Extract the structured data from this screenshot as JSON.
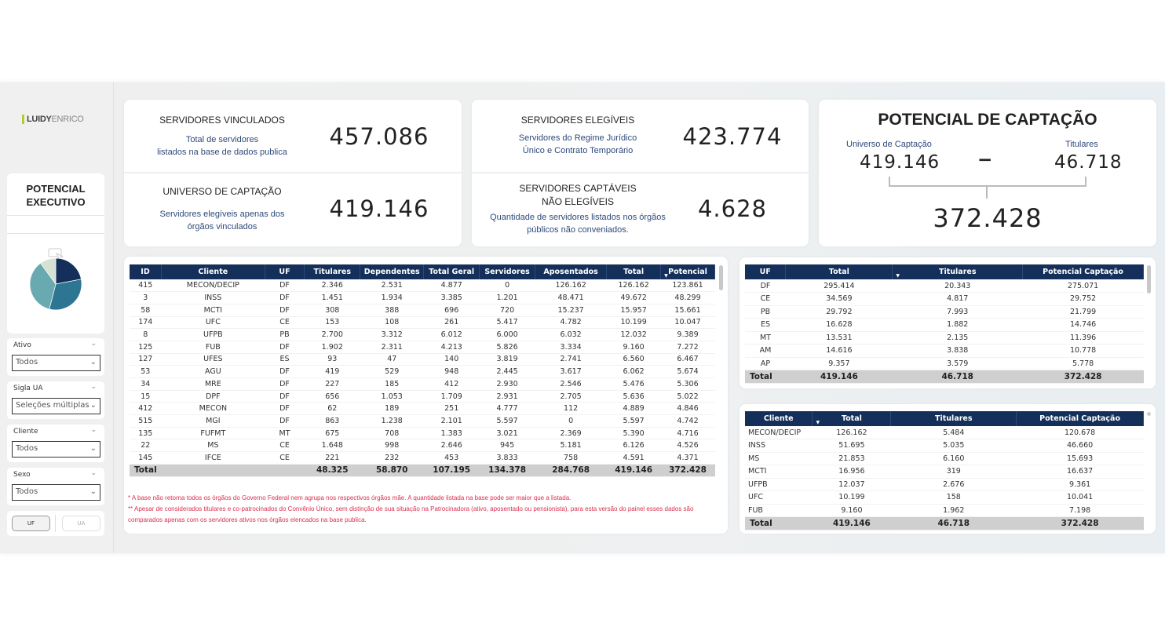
{
  "brand": {
    "logo_bold": "LUIDY",
    "logo_light": "ENRICO"
  },
  "sidebar": {
    "title": "POTENCIAL EXECUTIVO",
    "pie": {
      "slices": [
        22,
        32,
        36,
        10
      ],
      "colors": [
        "#14305a",
        "#2e7593",
        "#69aab0",
        "#d5e2d3"
      ]
    },
    "slicers": [
      {
        "label": "Ativo",
        "value": "Todos"
      },
      {
        "label": "Sigla UA",
        "value": "Seleções múltiplas"
      },
      {
        "label": "Cliente",
        "value": "Todos"
      },
      {
        "label": "Sexo",
        "value": "Todos"
      }
    ],
    "toggle": {
      "uf": "UF",
      "ua": "UA"
    }
  },
  "kpis": {
    "vinculados": {
      "title": "SERVIDORES VINCULADOS",
      "desc1": "Total de servidores",
      "desc2": "listados na base de dados publica",
      "value": "457.086"
    },
    "universo": {
      "title": "UNIVERSO DE CAPTAÇÃO",
      "desc1": "Servidores elegíveis apenas dos",
      "desc2": "órgãos vinculados",
      "value": "419.146"
    },
    "elegiveis": {
      "title": "SERVIDORES ELEGÍVEIS",
      "desc1": "Servidores do Regime Jurídico",
      "desc2": "Único e Contrato Temporário",
      "value": "423.774"
    },
    "captaveis": {
      "title1": "SERVIDORES CAPTÁVEIS",
      "title2": "NÃO ELEGÍVEIS",
      "desc1": "Quantidade de servidores listados nos órgãos",
      "desc2": "públicos não conveniados.",
      "value": "4.628"
    }
  },
  "potencial": {
    "title": "POTENCIAL DE CAPTAÇÃO",
    "universo_label": "Universo de Captação",
    "universo": "419.146",
    "minus": "−",
    "titulares_label": "Titulares",
    "titulares": "46.718",
    "result": "372.428"
  },
  "main_table": {
    "headers": [
      "ID",
      "Cliente",
      "UF",
      "Titulares",
      "Dependentes",
      "Total Geral",
      "Servidores",
      "Aposentados",
      "Total",
      "Potencial"
    ],
    "rows": [
      [
        "415",
        "MECON/DECIP",
        "DF",
        "2.346",
        "2.531",
        "4.877",
        "0",
        "126.162",
        "126.162",
        "123.861"
      ],
      [
        "3",
        "INSS",
        "DF",
        "1.451",
        "1.934",
        "3.385",
        "1.201",
        "48.471",
        "49.672",
        "48.299"
      ],
      [
        "58",
        "MCTI",
        "DF",
        "308",
        "388",
        "696",
        "720",
        "15.237",
        "15.957",
        "15.661"
      ],
      [
        "174",
        "UFC",
        "CE",
        "153",
        "108",
        "261",
        "5.417",
        "4.782",
        "10.199",
        "10.047"
      ],
      [
        "8",
        "UFPB",
        "PB",
        "2.700",
        "3.312",
        "6.012",
        "6.000",
        "6.032",
        "12.032",
        "9.389"
      ],
      [
        "125",
        "FUB",
        "DF",
        "1.902",
        "2.311",
        "4.213",
        "5.826",
        "3.334",
        "9.160",
        "7.272"
      ],
      [
        "127",
        "UFES",
        "ES",
        "93",
        "47",
        "140",
        "3.819",
        "2.741",
        "6.560",
        "6.467"
      ],
      [
        "53",
        "AGU",
        "DF",
        "419",
        "529",
        "948",
        "2.445",
        "3.617",
        "6.062",
        "5.674"
      ],
      [
        "34",
        "MRE",
        "DF",
        "227",
        "185",
        "412",
        "2.930",
        "2.546",
        "5.476",
        "5.306"
      ],
      [
        "15",
        "DPF",
        "DF",
        "656",
        "1.053",
        "1.709",
        "2.931",
        "2.705",
        "5.636",
        "5.022"
      ],
      [
        "412",
        "MECON",
        "DF",
        "62",
        "189",
        "251",
        "4.777",
        "112",
        "4.889",
        "4.846"
      ],
      [
        "515",
        "MGI",
        "DF",
        "863",
        "1.238",
        "2.101",
        "5.597",
        "0",
        "5.597",
        "4.742"
      ],
      [
        "135",
        "FUFMT",
        "MT",
        "675",
        "708",
        "1.383",
        "3.021",
        "2.369",
        "5.390",
        "4.716"
      ],
      [
        "22",
        "MS",
        "CE",
        "1.648",
        "998",
        "2.646",
        "945",
        "5.181",
        "6.126",
        "4.526"
      ],
      [
        "145",
        "IFCE",
        "CE",
        "221",
        "232",
        "453",
        "3.833",
        "758",
        "4.591",
        "4.371"
      ]
    ],
    "total": [
      "Total",
      "",
      "",
      "48.325",
      "58.870",
      "107.195",
      "134.378",
      "284.768",
      "419.146",
      "372.428"
    ]
  },
  "notes": [
    "* A base não retorna todos os órgãos do Governo Federal nem agrupa nos respectivos órgãos mãe. A quantidade listada na base pode ser maior que a listada.",
    "** Apesar de considerados  titulares e co-patrocinados do Convênio Único, sem distinção de sua situação na Patrocinadora (ativo, aposentado ou pensionista), para esta versão do painel esses dados são comparados apenas com os servidores ativos nos órgãos elencados na base publica."
  ],
  "uf_table": {
    "headers": [
      "UF",
      "Total",
      "Titulares",
      "Potencial Captação"
    ],
    "rows": [
      [
        "DF",
        "295.414",
        "20.343",
        "275.071"
      ],
      [
        "CE",
        "34.569",
        "4.817",
        "29.752"
      ],
      [
        "PB",
        "29.792",
        "7.993",
        "21.799"
      ],
      [
        "ES",
        "16.628",
        "1.882",
        "14.746"
      ],
      [
        "MT",
        "13.531",
        "2.135",
        "11.396"
      ],
      [
        "AM",
        "14.616",
        "3.838",
        "10.778"
      ],
      [
        "AP",
        "9.357",
        "3.579",
        "5.778"
      ]
    ],
    "total": [
      "Total",
      "419.146",
      "46.718",
      "372.428"
    ]
  },
  "client_table": {
    "headers": [
      "Cliente",
      "Total",
      "Titulares",
      "Potencial Captação"
    ],
    "rows": [
      [
        "MECON/DECIP",
        "126.162",
        "5.484",
        "120.678"
      ],
      [
        "INSS",
        "51.695",
        "5.035",
        "46.660"
      ],
      [
        "MS",
        "21.853",
        "6.160",
        "15.693"
      ],
      [
        "MCTI",
        "16.956",
        "319",
        "16.637"
      ],
      [
        "UFPB",
        "12.037",
        "2.676",
        "9.361"
      ],
      [
        "UFC",
        "10.199",
        "158",
        "10.041"
      ],
      [
        "FUB",
        "9.160",
        "1.962",
        "7.198"
      ]
    ],
    "total": [
      "Total",
      "419.146",
      "46.718",
      "372.428"
    ]
  }
}
